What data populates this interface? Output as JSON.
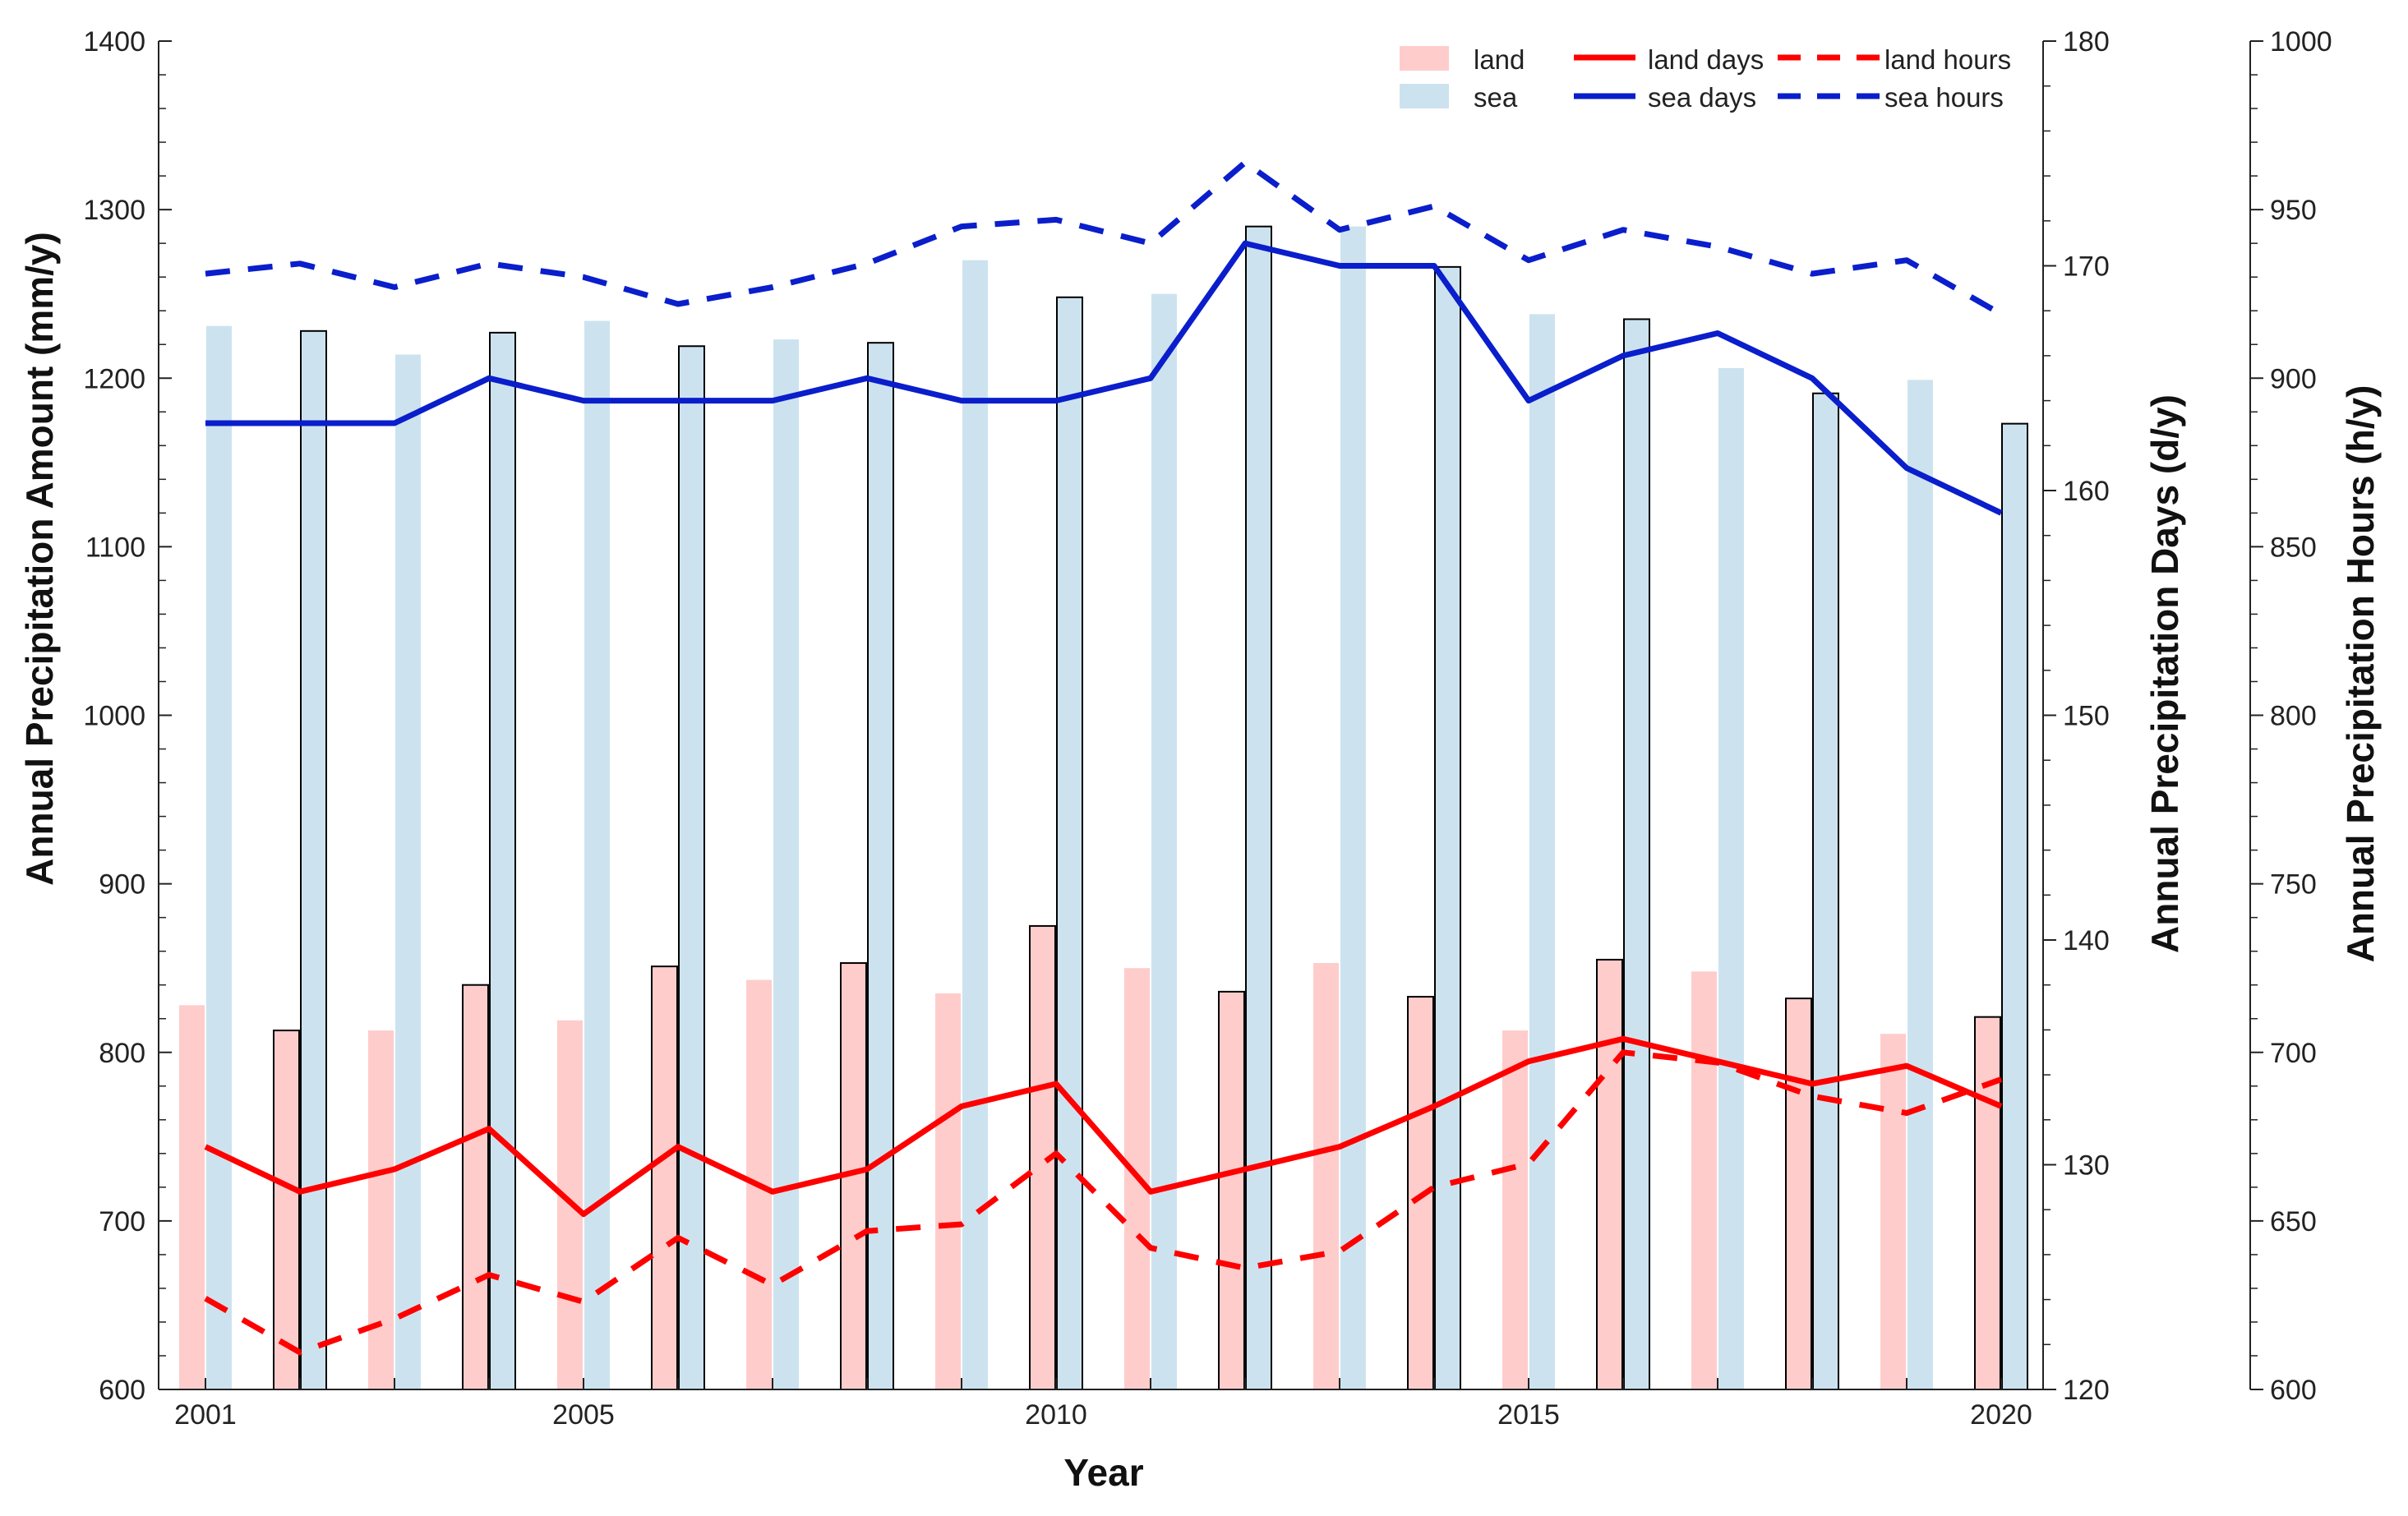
{
  "chart_data": {
    "type": "bar+line",
    "title": "",
    "xlabel": "Year",
    "ylabel_left": "Annual Precipitation Amount (mm/y)",
    "ylabel_right_days": "Annual Precipitation Days (d/y)",
    "ylabel_right_hours": "Annual Precipitation Hours (h/y)",
    "years": [
      2001,
      2002,
      2003,
      2004,
      2005,
      2006,
      2007,
      2008,
      2009,
      2010,
      2011,
      2012,
      2013,
      2014,
      2015,
      2016,
      2017,
      2018,
      2019,
      2020
    ],
    "x_tick_labels": [
      "2001",
      "2005",
      "2010",
      "2015",
      "2020"
    ],
    "x_tick_years": [
      2001,
      2005,
      2010,
      2015,
      2020
    ],
    "ylim_amount": [
      600,
      1400
    ],
    "ylim_days": [
      120,
      180
    ],
    "ylim_hours": [
      600,
      1000
    ],
    "amount_ticks": [
      "600",
      "700",
      "800",
      "900",
      "1000",
      "1100",
      "1200",
      "1300",
      "1400"
    ],
    "days_ticks": [
      "120",
      "130",
      "140",
      "150",
      "160",
      "170",
      "180"
    ],
    "hours_ticks": [
      "600",
      "650",
      "700",
      "750",
      "800",
      "850",
      "900",
      "950",
      "1000"
    ],
    "colors": {
      "land_bar": "#ffcccc",
      "sea_bar": "#cce3ef",
      "land_line": "#ff0000",
      "sea_line": "#0a1ecb",
      "bar_outline": "#000000"
    },
    "series": [
      {
        "name": "land",
        "kind": "bar",
        "axis": "amount",
        "values": [
          828,
          813,
          813,
          840,
          819,
          851,
          843,
          853,
          835,
          875,
          850,
          836,
          853,
          833,
          813,
          855,
          848,
          832,
          811,
          821
        ]
      },
      {
        "name": "sea",
        "kind": "bar",
        "axis": "amount",
        "values": [
          1231,
          1228,
          1214,
          1227,
          1234,
          1219,
          1223,
          1221,
          1270,
          1248,
          1250,
          1290,
          1290,
          1266,
          1238,
          1235,
          1206,
          1191,
          1199,
          1173
        ]
      },
      {
        "name": "land days",
        "kind": "line",
        "style": "solid",
        "axis": "days",
        "values": [
          130.8,
          128.8,
          129.8,
          131.6,
          127.8,
          130.8,
          128.8,
          129.8,
          132.6,
          133.6,
          128.8,
          129.8,
          130.8,
          132.6,
          134.6,
          135.6,
          134.6,
          133.6,
          134.4,
          132.6
        ]
      },
      {
        "name": "sea days",
        "kind": "line",
        "style": "solid",
        "axis": "days",
        "values": [
          163.0,
          163.0,
          163.0,
          165.0,
          164.0,
          164.0,
          164.0,
          165.0,
          164.0,
          164.0,
          165.0,
          171.0,
          170.0,
          170.0,
          164.0,
          166.0,
          167.0,
          165.0,
          161.0,
          159.0
        ]
      },
      {
        "name": "land hours",
        "kind": "line",
        "style": "dashed",
        "axis": "hours",
        "values": [
          627,
          611,
          621,
          634,
          626,
          645,
          631,
          647,
          649,
          670,
          642,
          636,
          641,
          660,
          667,
          700,
          697,
          687,
          682,
          692
        ]
      },
      {
        "name": "sea hours",
        "kind": "line",
        "style": "dashed",
        "axis": "hours",
        "values": [
          931,
          934,
          927,
          934,
          930,
          922,
          927,
          934,
          945,
          947,
          940,
          964,
          944,
          951,
          935,
          944,
          939,
          931,
          935,
          919
        ]
      }
    ],
    "legend": {
      "placement": "top-right",
      "entries": [
        "land",
        "sea",
        "land days",
        "sea days",
        "land hours",
        "sea hours"
      ]
    }
  }
}
